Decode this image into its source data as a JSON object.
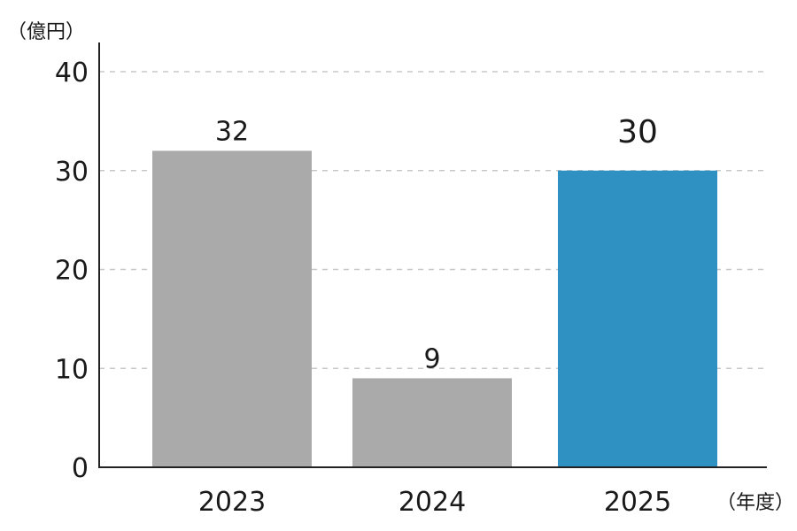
{
  "chart_data": {
    "type": "bar",
    "categories": [
      "2023",
      "2024",
      "2025"
    ],
    "values": [
      32,
      9,
      30
    ],
    "data_labels": [
      "32",
      "9",
      "30"
    ],
    "y_unit_label": "（億円）",
    "x_unit_label": "（年度）",
    "ylim": [
      0,
      40
    ],
    "yticks": [
      "0",
      "10",
      "20",
      "30",
      "40"
    ],
    "grid": true,
    "colors": {
      "default_bar": "#aaaaaa",
      "highlight_bar": "#2e91c2"
    },
    "highlight_index": 2
  }
}
